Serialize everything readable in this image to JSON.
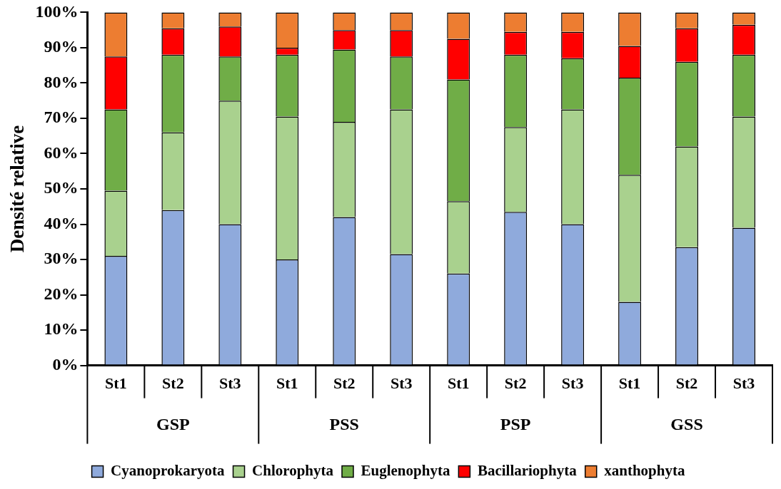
{
  "chart_data": {
    "type": "bar",
    "stacked": true,
    "ylabel": "Densité relative",
    "categories": [
      "St1",
      "St2",
      "St3",
      "St1",
      "St2",
      "St3",
      "St1",
      "St2",
      "St3",
      "St1",
      "St2",
      "St3"
    ],
    "annotations": [
      "GSP",
      "PSS",
      "PSP",
      "GSS"
    ],
    "series": [
      {
        "name": "Cyanoprokaryota",
        "color": "#8faadc",
        "values": [
          31,
          44,
          40,
          30,
          42,
          31.5,
          26,
          43.5,
          40,
          18,
          33.5,
          39
        ]
      },
      {
        "name": "Chlorophyta",
        "color": "#a9d18e",
        "values": [
          18.5,
          22,
          35,
          40.5,
          27,
          41,
          20.5,
          24,
          32.5,
          36,
          28.5,
          31.5
        ]
      },
      {
        "name": "Euglenophyta",
        "color": "#70ad47",
        "values": [
          23,
          22,
          12.5,
          17.5,
          20.5,
          15,
          34.5,
          20.5,
          14.5,
          27.5,
          24,
          17.5
        ]
      },
      {
        "name": "Bacillariophyta",
        "color": "#ff0000",
        "values": [
          15,
          7.5,
          8.5,
          2,
          5.5,
          7.5,
          11.5,
          6.5,
          7.5,
          9,
          9.5,
          8.5
        ]
      },
      {
        "name": "xanthophyta",
        "color": "#ed7d31",
        "values": [
          12.5,
          4.5,
          4,
          10,
          5,
          5,
          7.5,
          5.5,
          5.5,
          9.5,
          4.5,
          3.5
        ]
      }
    ],
    "ylim": [
      0,
      100
    ],
    "yticks": [
      {
        "value": 0,
        "label": "0%"
      },
      {
        "value": 10,
        "label": "10%"
      },
      {
        "value": 20,
        "label": "20%"
      },
      {
        "value": 30,
        "label": "30%"
      },
      {
        "value": 40,
        "label": "40%"
      },
      {
        "value": 50,
        "label": "50%"
      },
      {
        "value": 60,
        "label": "60%"
      },
      {
        "value": 70,
        "label": "70%"
      },
      {
        "value": 80,
        "label": "80%"
      },
      {
        "value": 90,
        "label": "90%"
      },
      {
        "value": 100,
        "label": "100%"
      }
    ],
    "grid": false,
    "legend": "bottom"
  }
}
